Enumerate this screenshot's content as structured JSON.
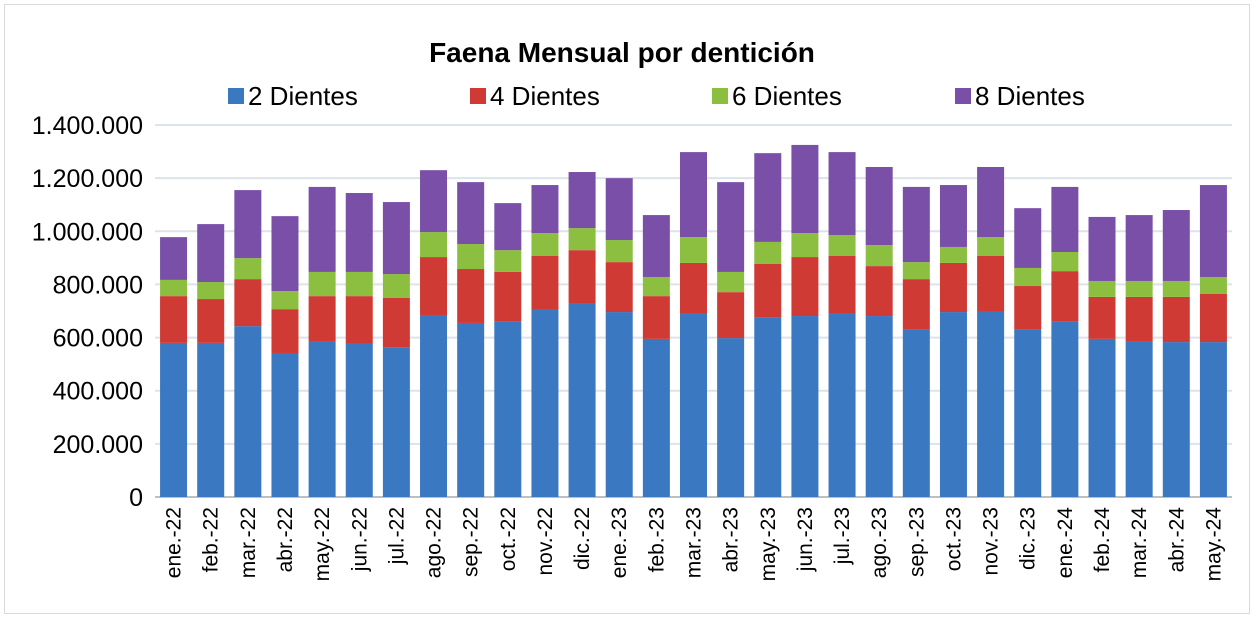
{
  "chart_data": {
    "type": "bar",
    "stacked": true,
    "title": "Faena Mensual por dentición",
    "xlabel": "",
    "ylabel": "",
    "ylim": [
      0,
      1400000
    ],
    "yticks": [
      0,
      200000,
      400000,
      600000,
      800000,
      1000000,
      1200000,
      1400000
    ],
    "ytick_labels": [
      "0",
      "200.000",
      "400.000",
      "600.000",
      "800.000",
      "1.000.000",
      "1.200.000",
      "1.400.000"
    ],
    "grid": true,
    "legend_position": "top",
    "categories": [
      "ene.-22",
      "feb.-22",
      "mar.-22",
      "abr.-22",
      "may.-22",
      "jun.-22",
      "jul.-22",
      "ago.-22",
      "sep.-22",
      "oct.-22",
      "nov.-22",
      "dic.-22",
      "ene.-23",
      "feb.-23",
      "mar.-23",
      "abr.-23",
      "may.-23",
      "jun.-23",
      "jul.-23",
      "ago.-23",
      "sep.-23",
      "oct.-23",
      "nov.-23",
      "dic.-23",
      "ene.-24",
      "feb.-24",
      "mar.-24",
      "abr.-24",
      "may.-24"
    ],
    "series": [
      {
        "name": "2 Dientes",
        "color": "#3a78c2",
        "values": [
          580000,
          580000,
          643000,
          542000,
          587000,
          576000,
          564000,
          685000,
          655000,
          662000,
          704000,
          730000,
          696000,
          595000,
          689000,
          598000,
          677000,
          681000,
          689000,
          681000,
          632000,
          696000,
          700000,
          632000,
          662000,
          595000,
          587000,
          583000,
          583000
        ]
      },
      {
        "name": "4 Dientes",
        "color": "#d03a35",
        "values": [
          176000,
          165000,
          177000,
          165000,
          169000,
          180000,
          185000,
          218000,
          203000,
          185000,
          203000,
          199000,
          188000,
          161000,
          192000,
          173000,
          200000,
          222000,
          218000,
          188000,
          188000,
          185000,
          207000,
          162000,
          188000,
          158000,
          166000,
          170000,
          181000
        ]
      },
      {
        "name": "6 Dientes",
        "color": "#8cbf3f",
        "values": [
          61000,
          64000,
          79000,
          68000,
          91000,
          91000,
          90000,
          94000,
          94000,
          82000,
          86000,
          83000,
          83000,
          72000,
          97000,
          76000,
          83000,
          90000,
          79000,
          79000,
          64000,
          60000,
          71000,
          68000,
          72000,
          60000,
          60000,
          60000,
          64000
        ]
      },
      {
        "name": "8 Dientes",
        "color": "#7a4fa8",
        "values": [
          161000,
          218000,
          256000,
          282000,
          320000,
          297000,
          271000,
          233000,
          233000,
          177000,
          181000,
          211000,
          233000,
          233000,
          320000,
          338000,
          334000,
          332000,
          312000,
          294000,
          283000,
          233000,
          264000,
          225000,
          245000,
          241000,
          248000,
          267000,
          346000
        ]
      }
    ]
  }
}
